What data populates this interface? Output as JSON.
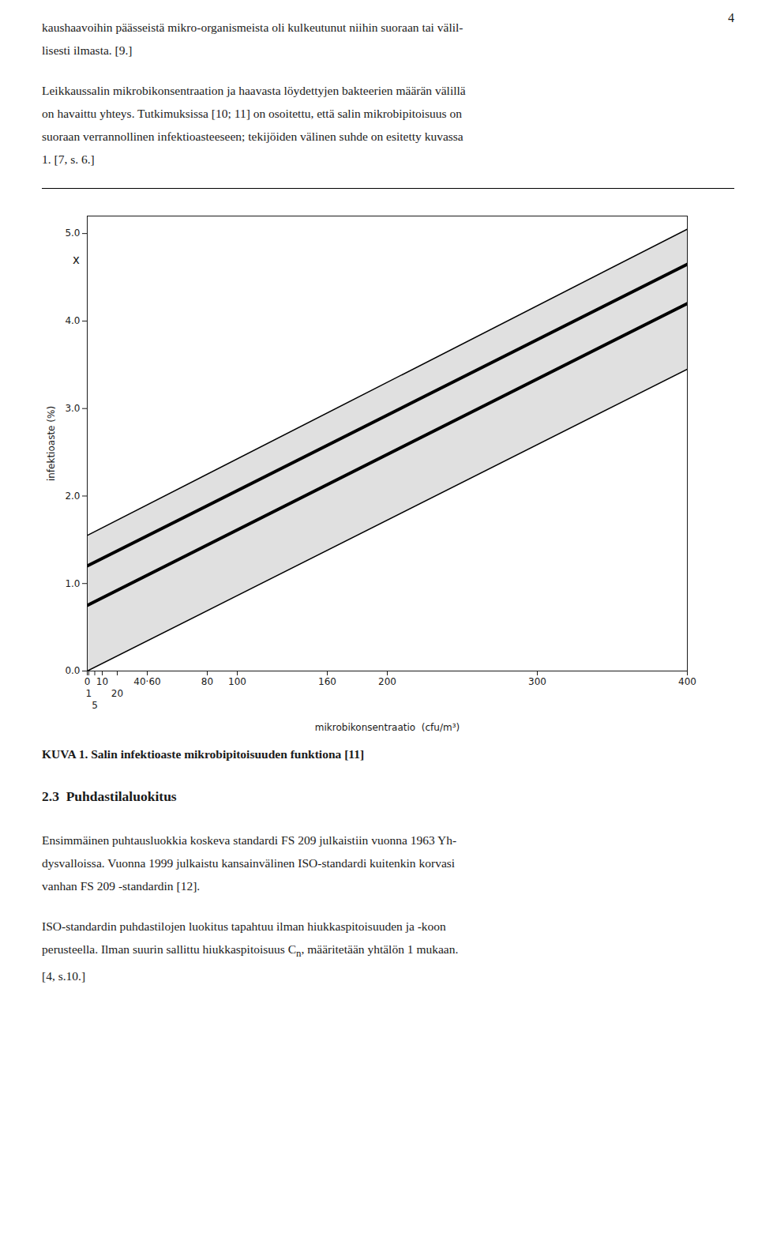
{
  "chart_data": {
    "type": "line",
    "x": [
      0,
      400
    ],
    "band": {
      "lower": [
        0.0,
        3.45
      ],
      "upper": [
        1.55,
        5.05
      ],
      "color": "#000000"
    },
    "series": [
      {
        "values": [
          0.75,
          4.2
        ],
        "color": "#000000"
      },
      {
        "values": [
          1.2,
          4.65
        ],
        "color": "#000000"
      }
    ],
    "xlabel": "mikrobikonsentraatio  (cfu/m³)",
    "ylabel": "infektioaste (%)",
    "xlim": [
      0,
      400
    ],
    "ylim": [
      0,
      5.2
    ],
    "xticks": [
      0,
      1,
      5,
      10,
      20,
      {
        "value": 40,
        "label": "40·60"
      },
      80,
      100,
      160,
      200,
      300,
      400
    ],
    "yticks": [
      0,
      1,
      2,
      3,
      4,
      5
    ],
    "annotations": [
      {
        "text": "x",
        "x": 0,
        "y": 4.7
      }
    ],
    "grid": false,
    "caption": "KUVA 1. Salin infektioaste mikrobipitoisuuden funktiona [11]"
  },
  "page": {
    "page_number": "4",
    "paragraphs_before": [
      [
        "kaushaavoihin päässeistä mikro-organismeista oli kulkeutunut niihin suoraan tai välil-",
        "lisesti ilmasta. [9.]"
      ],
      [
        "Leikkaussalin mikrobikonsentraation ja haavasta löydettyjen bakteerien määrän välillä",
        "on havaittu yhteys. Tutkimuksissa [10; 11] on osoitettu, että salin mikrobipitoisuus on",
        "suoraan verrannollinen infektioasteeseen; tekijöiden välinen suhde on esitetty kuvassa",
        "1. [7, s. 6.]"
      ]
    ],
    "section_title": "2.3  Puhdastilaluokitus",
    "paragraphs_after": [
      [
        "Ensimmäinen puhtausluokkia koskeva standardi FS 209 julkaistiin vuonna 1963 Yh-",
        "dysvalloissa. Vuonna 1999 julkaistu kansainvälinen ISO-standardi kuitenkin korvasi",
        "vanhan FS 209 -standardin [12]."
      ],
      [
        "ISO-standardin puhdastilojen luokitus tapahtuu ilman hiukkaspitoisuuden ja -koon",
        {
          "text": "perusteella. Ilman suurin sallittu hiukkaspitoisuus C",
          "sub": "n",
          "after": ", määritetään yhtälön 1 mukaan."
        },
        "[4, s.10.]"
      ]
    ]
  }
}
